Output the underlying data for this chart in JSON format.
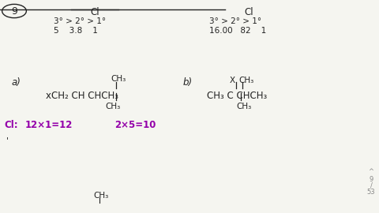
{
  "bg_color": "#f5f5f0",
  "title_circle": "9",
  "top_left_cl": "Cl",
  "top_left_row1": "3° > 2° > 1°",
  "top_left_row2": "5    3.8    1",
  "top_right_cl": "Cl",
  "top_right_row1": "3° > 2° > 1°",
  "top_right_row2": "16.00   82    1",
  "label_a": "a)",
  "mol_a_main": "xCH₂ CH CHCH₃",
  "mol_a_top": "CH₃",
  "mol_a_bottom": "CH₃",
  "label_b": "b)",
  "mol_b_main": "CH₃ C CHCH₃",
  "mol_b_top_x": "X",
  "mol_b_top_ch3": "CH₃",
  "mol_b_bottom": "CH₃",
  "calc_line_cl": "Cl:",
  "calc_line_eq1": "12×1=12",
  "calc_line_eq2": "2×5=10",
  "bottom_ch3": "CH₃",
  "page_num1": "9",
  "page_num2": "53",
  "purple_color": "#9400aa",
  "black_color": "#222222",
  "gray_color": "#888888",
  "fs_main": 8.5,
  "fs_small": 7.5,
  "fs_circle": 9.0
}
